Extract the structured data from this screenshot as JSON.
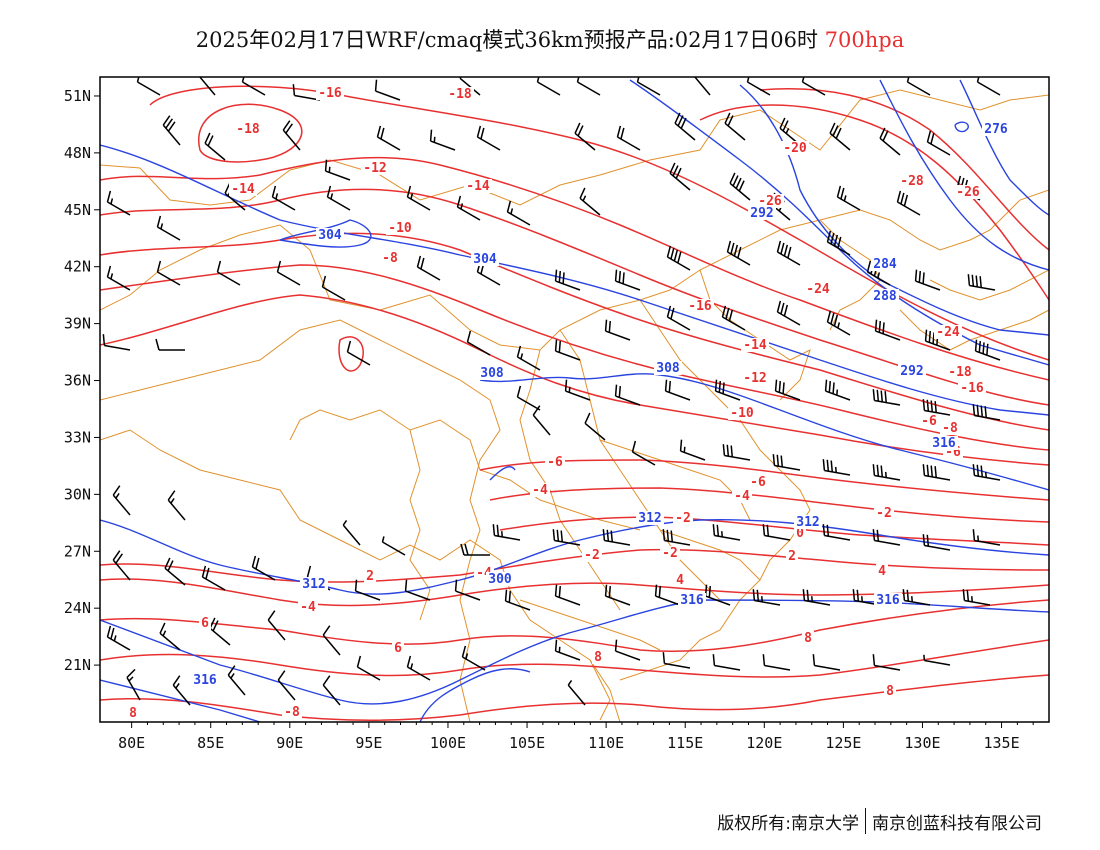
{
  "title": {
    "main": "2025年02月17日WRF/cmaq模式36km预报产品:02月17日06时",
    "level": "700hpa"
  },
  "colors": {
    "temperature": "#e83030",
    "height": "#2a44e0",
    "boundary": "#e0922e",
    "wind": "#000000",
    "frame": "#000000"
  },
  "axes": {
    "lon_ticks": [
      "80E",
      "85E",
      "90E",
      "95E",
      "100E",
      "105E",
      "110E",
      "115E",
      "120E",
      "125E",
      "130E",
      "135E"
    ],
    "lat_ticks": [
      "51N",
      "48N",
      "45N",
      "42N",
      "39N",
      "36N",
      "33N",
      "30N",
      "27N",
      "24N",
      "21N"
    ],
    "lon_range": [
      78,
      138
    ],
    "lat_range": [
      18,
      52
    ]
  },
  "contour_labels": {
    "temperature": [
      "-16",
      "-18",
      "-18",
      "-14",
      "-12",
      "-14",
      "-10",
      "-8",
      "-20",
      "-26",
      "-28",
      "-26",
      "-24",
      "-16",
      "-24",
      "-14",
      "-18",
      "-12",
      "-10",
      "-16",
      "-8",
      "-6",
      "-6",
      "-4",
      "-6",
      "-4",
      "-2",
      "-2",
      "0",
      "-2",
      "2",
      "-2",
      "4",
      "2",
      "-4",
      "-4",
      "4",
      "6",
      "6",
      "8",
      "8",
      "8",
      "8",
      "-8",
      "-6"
    ],
    "height": [
      "304",
      "304",
      "292",
      "284",
      "288",
      "276",
      "308",
      "308",
      "292",
      "312",
      "312",
      "312",
      "300",
      "316",
      "316",
      "316",
      "316"
    ]
  },
  "footer": {
    "copyright": "版权所有:南京大学",
    "company": "南京创蓝科技有限公司"
  }
}
